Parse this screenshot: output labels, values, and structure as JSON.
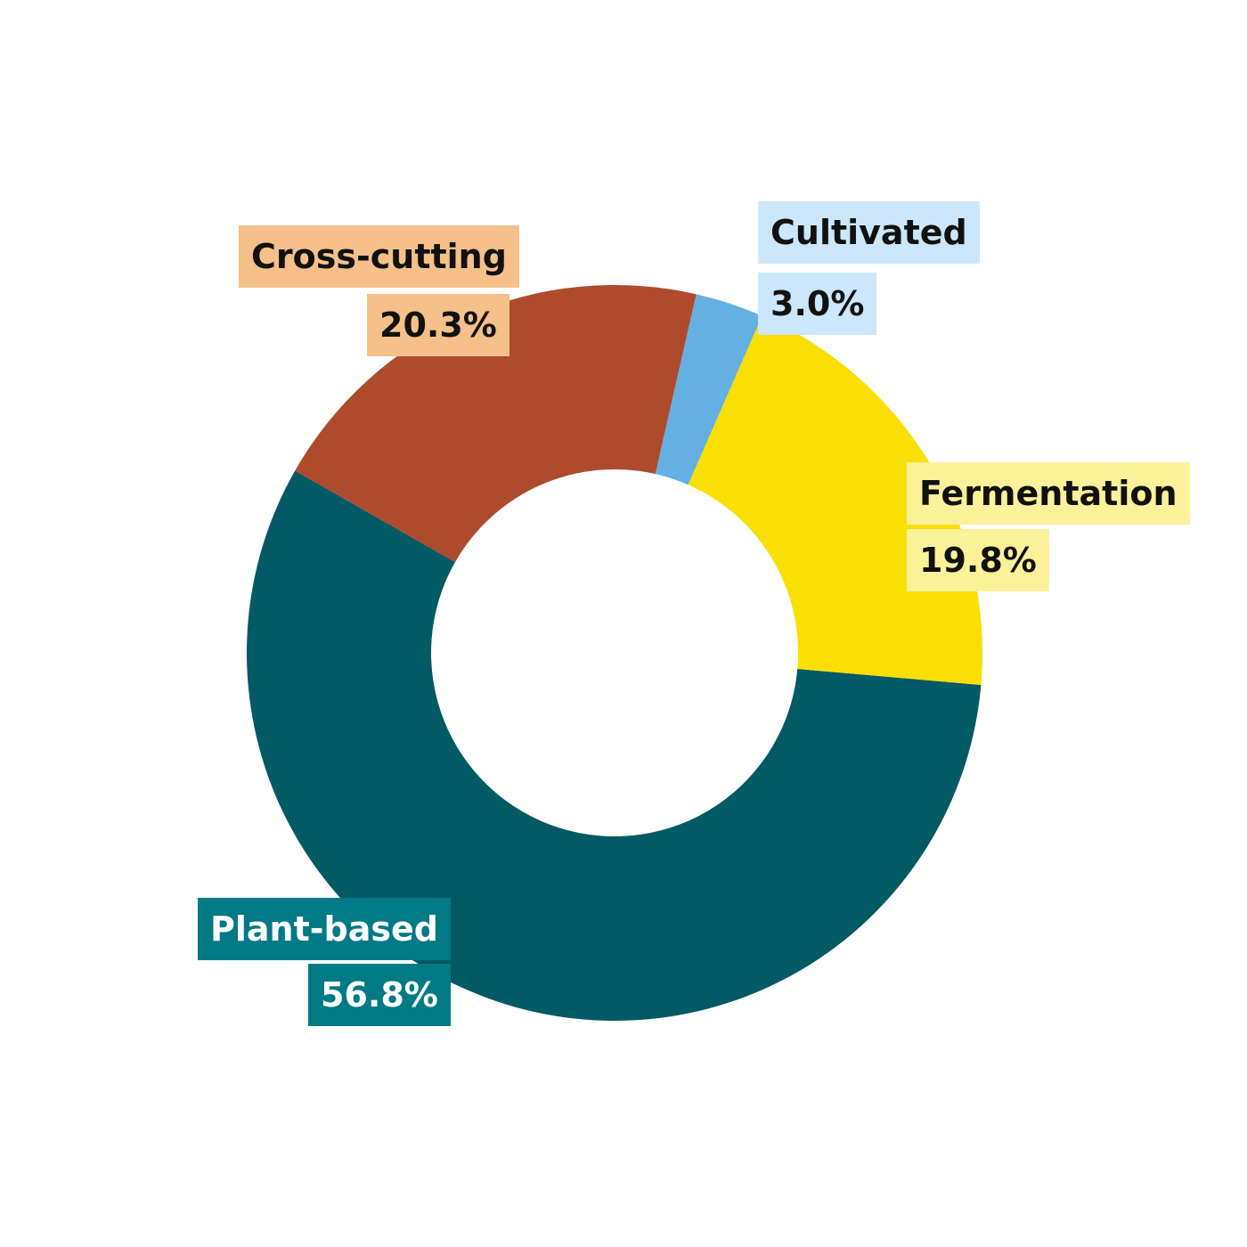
{
  "chart_data": {
    "type": "pie",
    "variant": "donut",
    "slices": [
      {
        "name": "Plant-based",
        "value": 56.8,
        "label": "56.8%",
        "color": "#025A64",
        "label_bg": "#027A86",
        "label_text_color": "#ffffff"
      },
      {
        "name": "Cross-cutting",
        "value": 20.3,
        "label": "20.3%",
        "color": "#AE4B2D",
        "label_bg": "#F5C08A",
        "label_text_color": "#111111"
      },
      {
        "name": "Cultivated",
        "value": 3.0,
        "label": "3.0%",
        "color": "#65B0E2",
        "label_bg": "#CCE7FB",
        "label_text_color": "#111111"
      },
      {
        "name": "Fermentation",
        "value": 19.8,
        "label": "19.8%",
        "color": "#F9DF03",
        "label_bg": "#FBF199",
        "label_text_color": "#111111"
      }
    ],
    "legend": "none"
  }
}
